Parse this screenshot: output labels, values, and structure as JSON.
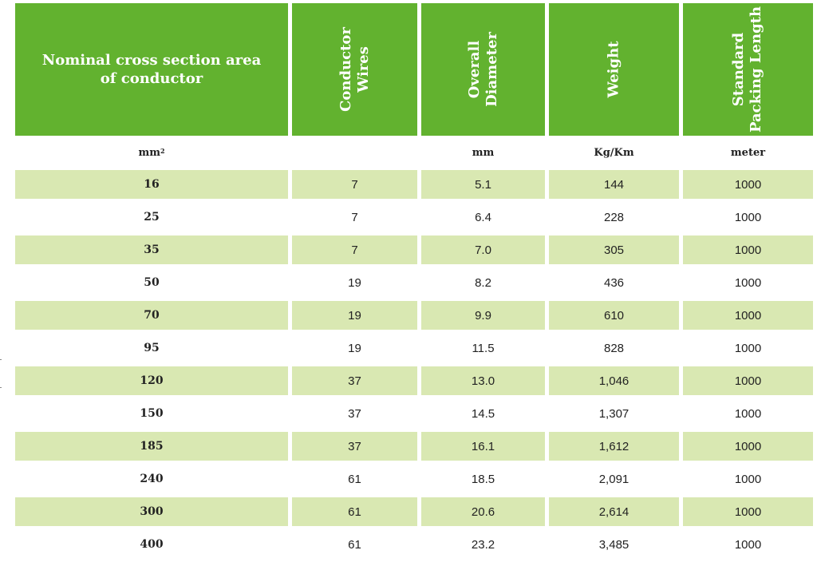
{
  "header": {
    "col1": "Nominal cross section area of conductor",
    "col2": [
      "Conductor",
      "Wires"
    ],
    "col3": [
      "Overall",
      "Diameter"
    ],
    "col4": [
      "Weight"
    ],
    "col5": [
      "Standard",
      "Packing Length"
    ]
  },
  "units": {
    "col1_base": "mm",
    "col1_sup": "2",
    "col2": "",
    "col3": "mm",
    "col4": "Kg/Km",
    "col5": "meter"
  },
  "colors": {
    "header_green": "#62b22f",
    "band_green": "#d9e8b2"
  },
  "rows": [
    {
      "area": "16",
      "wires": "7",
      "diameter": "5.1",
      "weight": "144",
      "length": "1000"
    },
    {
      "area": "25",
      "wires": "7",
      "diameter": "6.4",
      "weight": "228",
      "length": "1000"
    },
    {
      "area": "35",
      "wires": "7",
      "diameter": "7.0",
      "weight": "305",
      "length": "1000"
    },
    {
      "area": "50",
      "wires": "19",
      "diameter": "8.2",
      "weight": "436",
      "length": "1000"
    },
    {
      "area": "70",
      "wires": "19",
      "diameter": "9.9",
      "weight": "610",
      "length": "1000"
    },
    {
      "area": "95",
      "wires": "19",
      "diameter": "11.5",
      "weight": "828",
      "length": "1000"
    },
    {
      "area": "120",
      "wires": "37",
      "diameter": "13.0",
      "weight": "1,046",
      "length": "1000"
    },
    {
      "area": "150",
      "wires": "37",
      "diameter": "14.5",
      "weight": "1,307",
      "length": "1000"
    },
    {
      "area": "185",
      "wires": "37",
      "diameter": "16.1",
      "weight": "1,612",
      "length": "1000"
    },
    {
      "area": "240",
      "wires": "61",
      "diameter": "18.5",
      "weight": "2,091",
      "length": "1000"
    },
    {
      "area": "300",
      "wires": "61",
      "diameter": "20.6",
      "weight": "2,614",
      "length": "1000"
    },
    {
      "area": "400",
      "wires": "61",
      "diameter": "23.2",
      "weight": "3,485",
      "length": "1000"
    }
  ]
}
